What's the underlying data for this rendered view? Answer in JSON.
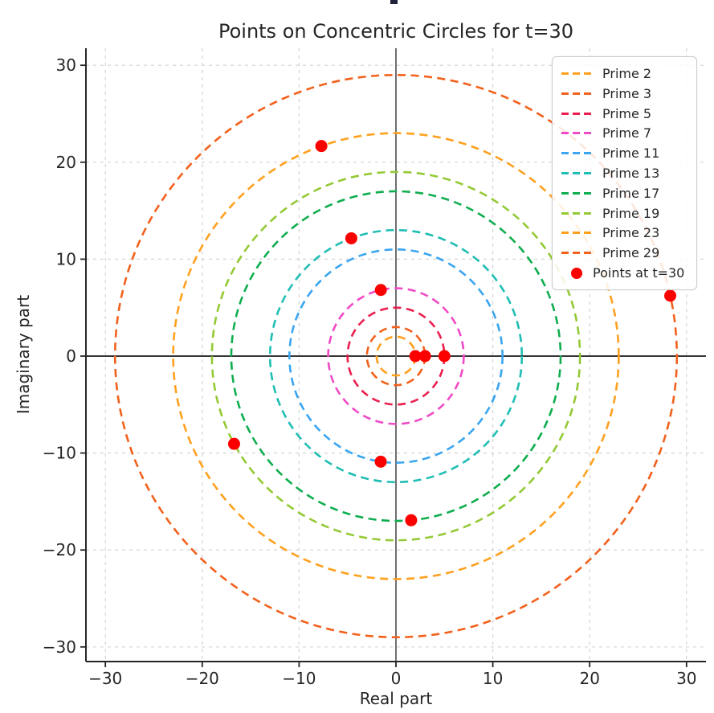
{
  "chart_data": {
    "type": "scatter",
    "title": "Points on Concentric Circles for t=30",
    "xlabel": "Real part",
    "ylabel": "Imaginary part",
    "t": 30,
    "xlim": [
      -32,
      32
    ],
    "ylim": [
      -31.7,
      31.7
    ],
    "xticks": [
      -30,
      -20,
      -10,
      0,
      10,
      20,
      30
    ],
    "yticks": [
      -30,
      -20,
      -10,
      0,
      10,
      20,
      30
    ],
    "grid": {
      "visible": true,
      "color": "#d4d4d4",
      "style": "dashed"
    },
    "origin_lines": {
      "h_color": "#1a1a1a",
      "v_color": "#6f6f6f"
    },
    "spine_color": "#262626",
    "text_color": "#262626",
    "series": [
      {
        "label": "Prime 2",
        "prime": 2,
        "radius": 2,
        "color": "#FFA01F",
        "point": {
          "x": 2.0,
          "y": 0.0
        }
      },
      {
        "label": "Prime 3",
        "prime": 3,
        "radius": 3,
        "color": "#F2611C",
        "point": {
          "x": 3.0,
          "y": 0.0
        }
      },
      {
        "label": "Prime 5",
        "prime": 5,
        "radius": 5,
        "color": "#EB1E4E",
        "point": {
          "x": 5.0,
          "y": 0.0
        }
      },
      {
        "label": "Prime 7",
        "prime": 7,
        "radius": 7,
        "color": "#F04BC6",
        "point": {
          "x": -1.56,
          "y": 6.82
        }
      },
      {
        "label": "Prime 11",
        "prime": 11,
        "radius": 11,
        "color": "#3AA5F0",
        "point": {
          "x": -1.57,
          "y": -10.89
        }
      },
      {
        "label": "Prime 13",
        "prime": 13,
        "radius": 13,
        "color": "#1FBEB4",
        "point": {
          "x": -4.61,
          "y": 12.15
        }
      },
      {
        "label": "Prime 17",
        "prime": 17,
        "radius": 17,
        "color": "#0FAD4F",
        "point": {
          "x": 1.57,
          "y": -16.93
        }
      },
      {
        "label": "Prime 19",
        "prime": 19,
        "radius": 19,
        "color": "#93C934",
        "point": {
          "x": -16.71,
          "y": -9.05
        }
      },
      {
        "label": "Prime 23",
        "prime": 23,
        "radius": 23,
        "color": "#FFA01F",
        "point": {
          "x": -7.7,
          "y": 21.67
        }
      },
      {
        "label": "Prime 29",
        "prime": 29,
        "radius": 29,
        "color": "#F2611C",
        "point": {
          "x": 28.32,
          "y": 6.23
        }
      }
    ],
    "points_series": {
      "label": "Points at t=30",
      "color": "#FC0000",
      "marker": "circle"
    },
    "legend": {
      "position": "upper right"
    }
  }
}
